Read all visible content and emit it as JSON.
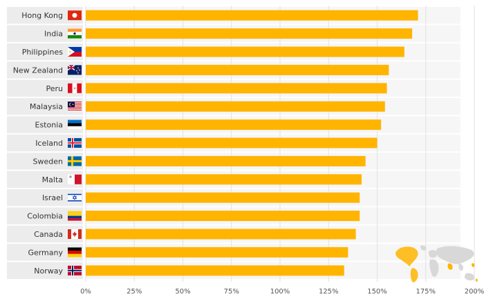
{
  "chart_data": {
    "type": "bar",
    "orientation": "horizontal",
    "categories": [
      "Hong Kong",
      "India",
      "Philippines",
      "New Zealand",
      "Peru",
      "Malaysia",
      "Estonia",
      "Iceland",
      "Sweden",
      "Malta",
      "Israel",
      "Colombia",
      "Canada",
      "Germany",
      "Norway"
    ],
    "flag_icons": [
      "hong-kong-flag-icon",
      "india-flag-icon",
      "philippines-flag-icon",
      "new-zealand-flag-icon",
      "peru-flag-icon",
      "malaysia-flag-icon",
      "estonia-flag-icon",
      "iceland-flag-icon",
      "sweden-flag-icon",
      "malta-flag-icon",
      "israel-flag-icon",
      "colombia-flag-icon",
      "canada-flag-icon",
      "germany-flag-icon",
      "norway-flag-icon"
    ],
    "values": [
      171,
      168,
      164,
      156,
      155,
      154,
      152,
      150,
      144,
      142,
      141,
      141,
      139,
      135,
      133
    ],
    "xlim": [
      0,
      200
    ],
    "ticks": [
      "0%",
      "25%",
      "50%",
      "75%",
      "100%",
      "125%",
      "150%",
      "175%",
      "200%"
    ],
    "tick_values": [
      0,
      25,
      50,
      75,
      100,
      125,
      150,
      175,
      200
    ],
    "grid": true,
    "bar_color": "#ffb400",
    "xlabel": "",
    "ylabel": "",
    "title": ""
  },
  "decoration": {
    "map_icon": "world-map-icon",
    "map_highlight_color": "#ffb400"
  }
}
